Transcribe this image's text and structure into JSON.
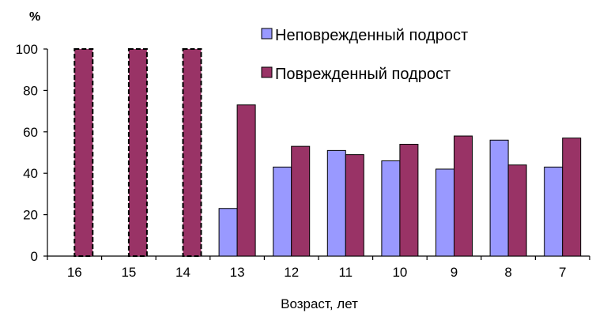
{
  "chart_data": {
    "type": "bar",
    "categories": [
      "16",
      "15",
      "14",
      "13",
      "12",
      "11",
      "10",
      "9",
      "8",
      "7"
    ],
    "series": [
      {
        "name": "Неповрежденный подрост",
        "color": "#9999ff",
        "values": [
          0,
          0,
          0,
          23,
          43,
          51,
          46,
          42,
          56,
          43
        ]
      },
      {
        "name": "Поврежденный подрост",
        "color": "#993366",
        "values": [
          100,
          100,
          100,
          73,
          53,
          49,
          54,
          58,
          44,
          57
        ]
      }
    ],
    "title": "",
    "xlabel": "Возраст, лет",
    "ylabel": "%",
    "ylim": [
      0,
      100
    ],
    "yticks": [
      0,
      20,
      40,
      60,
      80,
      100
    ],
    "legend": "top-right",
    "grid": false
  }
}
